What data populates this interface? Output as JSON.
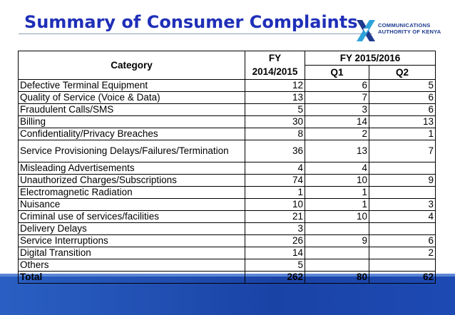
{
  "title": "Summary of Consumer Complaints",
  "logo": {
    "line1": "COMMUNICATIONS",
    "line2": "AUTHORITY OF KENYA"
  },
  "table": {
    "header": {
      "category": "Category",
      "fy_a": "FY",
      "fy_b": "2014/2015",
      "fy2": "FY 2015/2016",
      "q1": "Q1",
      "q2": "Q2"
    },
    "rows": [
      {
        "category": "Defective Terminal Equipment",
        "fy": "12",
        "q1": "6",
        "q2": "5"
      },
      {
        "category": "Quality of Service (Voice & Data)",
        "fy": "13",
        "q1": "7",
        "q2": "6"
      },
      {
        "category": "Fraudulent Calls/SMS",
        "fy": "5",
        "q1": "3",
        "q2": "6"
      },
      {
        "category": "Billing",
        "fy": "30",
        "q1": "14",
        "q2": "13"
      },
      {
        "category": "Confidentiality/Privacy Breaches",
        "fy": "8",
        "q1": "2",
        "q2": "1"
      },
      {
        "category": "Service Provisioning Delays/Failures/Termination",
        "fy": "36",
        "q1": "13",
        "q2": "7"
      },
      {
        "category": "Misleading Advertisements",
        "fy": "4",
        "q1": "4",
        "q2": ""
      },
      {
        "category": "Unauthorized Charges/Subscriptions",
        "fy": "74",
        "q1": "10",
        "q2": "9"
      },
      {
        "category": "Electromagnetic Radiation",
        "fy": "1",
        "q1": "1",
        "q2": ""
      },
      {
        "category": "Nuisance",
        "fy": "10",
        "q1": "1",
        "q2": "3"
      },
      {
        "category": "Criminal use of services/facilities",
        "fy": "21",
        "q1": "10",
        "q2": "4"
      },
      {
        "category": "Delivery Delays",
        "fy": "3",
        "q1": "",
        "q2": ""
      },
      {
        "category": "Service Interruptions",
        "fy": "26",
        "q1": "9",
        "q2": "6"
      },
      {
        "category": "Digital Transition",
        "fy": "14",
        "q1": "",
        "q2": "2"
      },
      {
        "category": "Others",
        "fy": "5",
        "q1": "",
        "q2": ""
      }
    ],
    "total": {
      "category": "Total",
      "fy": "262",
      "q1": "80",
      "q2": "62"
    }
  },
  "colors": {
    "title": "#1f2fb8",
    "footer": "#1a43a6"
  }
}
